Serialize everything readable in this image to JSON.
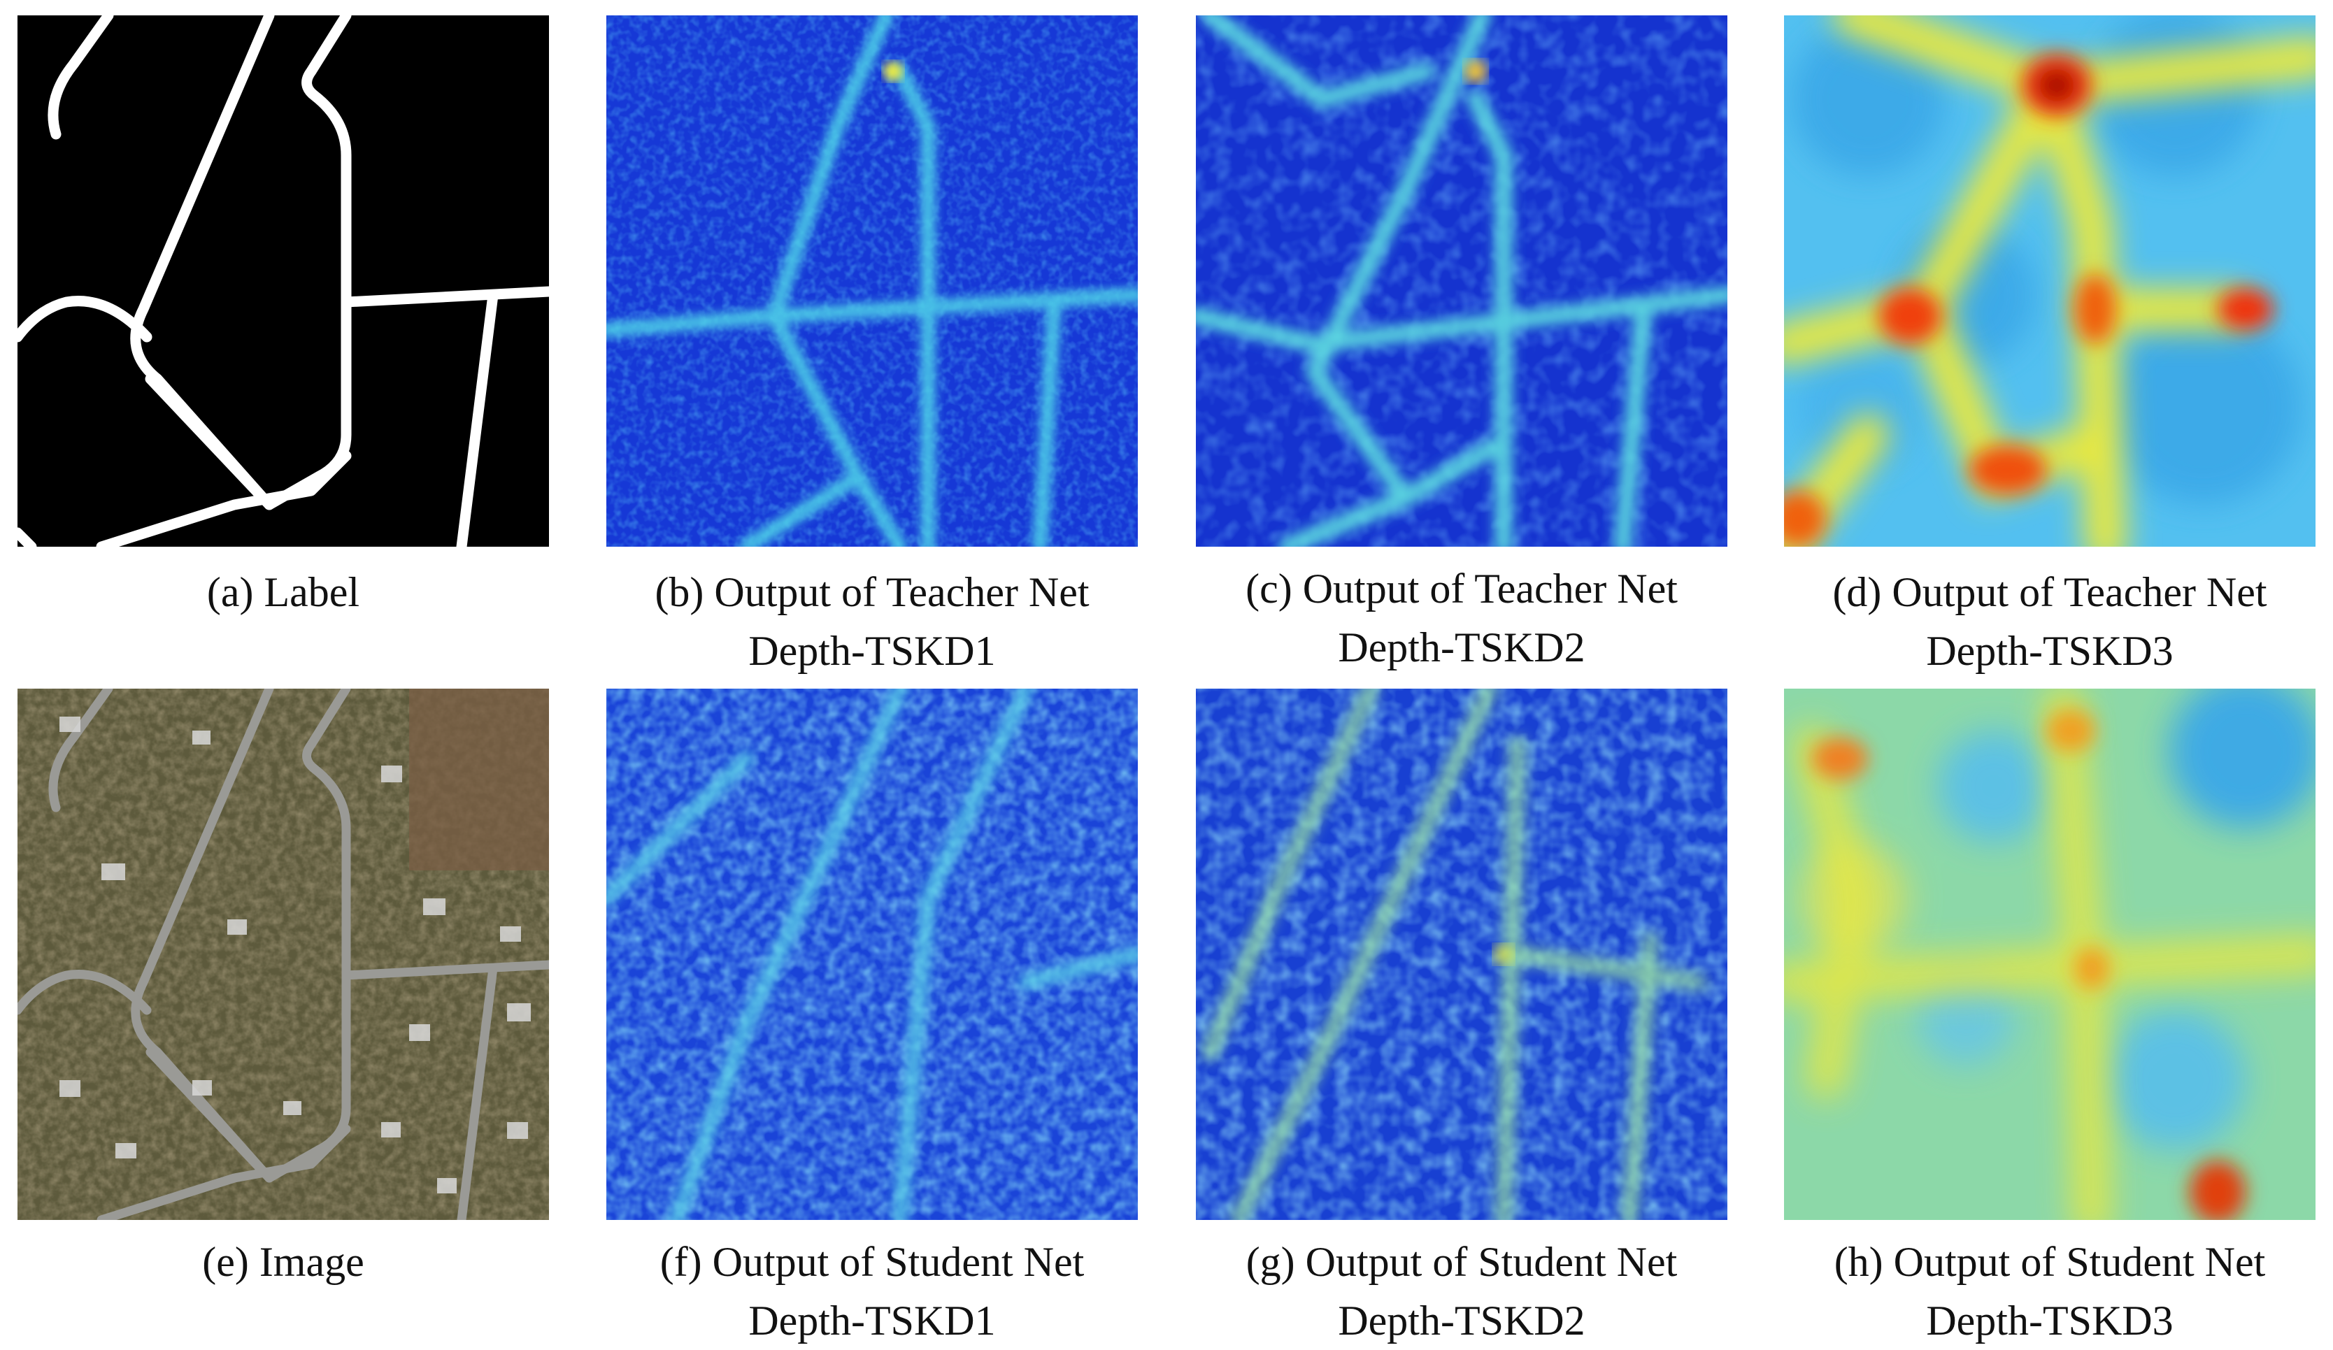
{
  "figure": {
    "panels": [
      {
        "id": "a",
        "kind": "label",
        "caption_lines": [
          "(a) Label"
        ]
      },
      {
        "id": "b",
        "kind": "heatmap",
        "caption_lines": [
          "(b) Output of Teacher Net",
          "Depth-TSKD1"
        ]
      },
      {
        "id": "c",
        "kind": "heatmap",
        "caption_lines": [
          "(c) Output of Teacher Net",
          "Depth-TSKD2"
        ]
      },
      {
        "id": "d",
        "kind": "heatmap",
        "caption_lines": [
          "(d) Output of Teacher Net",
          "Depth-TSKD3"
        ]
      },
      {
        "id": "e",
        "kind": "aerial-image",
        "caption_lines": [
          "(e) Image"
        ]
      },
      {
        "id": "f",
        "kind": "heatmap",
        "caption_lines": [
          "(f) Output of Student Net",
          "Depth-TSKD1"
        ]
      },
      {
        "id": "g",
        "kind": "heatmap",
        "caption_lines": [
          "(g) Output of Student Net",
          "Depth-TSKD2"
        ]
      },
      {
        "id": "h",
        "kind": "heatmap",
        "caption_lines": [
          "(h) Output of Student Net",
          "Depth-TSKD3"
        ]
      }
    ],
    "colors": {
      "label_background": "#000000",
      "label_road": "#ffffff",
      "heat_low": "#0a2ad8",
      "heat_mid": "#3cc8f0",
      "heat_high": "#ffe000",
      "heat_peak": "#c80000",
      "aerial_ground": "#5d5a3c",
      "aerial_road": "#9a9a96"
    }
  }
}
